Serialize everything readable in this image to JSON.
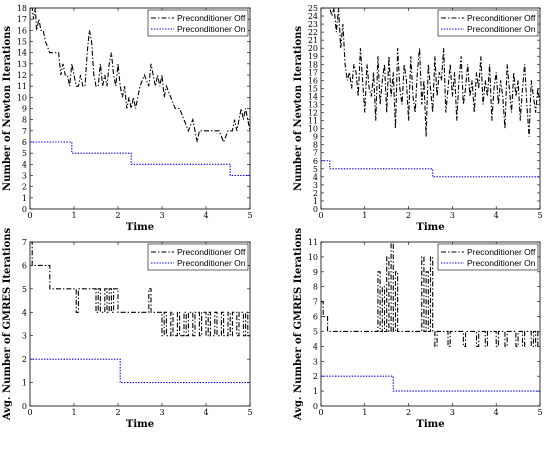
{
  "chart_data": [
    {
      "type": "line",
      "xlabel": "Time",
      "ylabel": "Number of Newton Iterations",
      "xlim": [
        0,
        5
      ],
      "ylim": [
        0,
        18
      ],
      "xticks": [
        "0",
        "1",
        "2",
        "3",
        "4",
        "5"
      ],
      "yticks": [
        "0",
        "1",
        "2",
        "3",
        "4",
        "5",
        "6",
        "7",
        "8",
        "9",
        "10",
        "11",
        "12",
        "13",
        "14",
        "15",
        "16",
        "17",
        "18"
      ],
      "grid": false,
      "legend_position": "top-right",
      "series": [
        {
          "name": "Preconditioner Off",
          "color": "#000000",
          "style": "dashdot",
          "x": [
            0,
            0.05,
            0.08,
            0.12,
            0.15,
            0.2,
            0.25,
            0.3,
            0.35,
            0.45,
            0.55,
            0.65,
            0.7,
            0.75,
            0.8,
            0.85,
            0.9,
            0.95,
            1.0,
            1.05,
            1.1,
            1.15,
            1.2,
            1.25,
            1.3,
            1.35,
            1.4,
            1.45,
            1.5,
            1.55,
            1.6,
            1.65,
            1.7,
            1.75,
            1.8,
            1.85,
            1.9,
            1.95,
            2.0,
            2.05,
            2.1,
            2.15,
            2.2,
            2.25,
            2.3,
            2.35,
            2.4,
            2.5,
            2.6,
            2.7,
            2.75,
            2.8,
            2.85,
            2.9,
            2.95,
            3.0,
            3.05,
            3.1,
            3.2,
            3.3,
            3.4,
            3.5,
            3.6,
            3.7,
            3.75,
            3.8,
            3.85,
            3.9,
            3.95,
            4.0,
            4.1,
            4.2,
            4.3,
            4.4,
            4.5,
            4.6,
            4.65,
            4.7,
            4.75,
            4.8,
            4.85,
            4.9,
            4.95,
            5.0
          ],
          "y": [
            18,
            18,
            17,
            18,
            16,
            17,
            16,
            16,
            15,
            14,
            14,
            14,
            12,
            13,
            12,
            12,
            11,
            13,
            12,
            11,
            11,
            12,
            11,
            11,
            14,
            16,
            15,
            12,
            11,
            11,
            13,
            11,
            12,
            11,
            13,
            14,
            12,
            11,
            13,
            11,
            10,
            11,
            9,
            10,
            9,
            10,
            9,
            11,
            12,
            11,
            13,
            12,
            11,
            12,
            11,
            12,
            10,
            11,
            10,
            9,
            9,
            8,
            7,
            8,
            7,
            6,
            7,
            7,
            7,
            7,
            7,
            7,
            7,
            6,
            7,
            7,
            8,
            7,
            8,
            9,
            8,
            9,
            8,
            7
          ]
        },
        {
          "name": "Preconditioner On",
          "color": "#0000ff",
          "style": "dotted",
          "x": [
            0,
            0.95,
            0.95,
            2.3,
            2.3,
            4.55,
            4.55,
            5.0
          ],
          "y": [
            6,
            6,
            5,
            5,
            4,
            4,
            3,
            3
          ]
        }
      ]
    },
    {
      "type": "line",
      "xlabel": "Time",
      "ylabel": "Number of Newton Iterations",
      "xlim": [
        0,
        5
      ],
      "ylim": [
        0,
        25
      ],
      "xticks": [
        "0",
        "1",
        "2",
        "3",
        "4",
        "5"
      ],
      "yticks": [
        "0",
        "1",
        "2",
        "3",
        "4",
        "5",
        "6",
        "7",
        "8",
        "9",
        "10",
        "11",
        "12",
        "13",
        "14",
        "15",
        "16",
        "17",
        "18",
        "19",
        "20",
        "21",
        "22",
        "23",
        "24",
        "25"
      ],
      "grid": false,
      "legend_position": "top-right",
      "series": [
        {
          "name": "Preconditioner Off",
          "color": "#000000",
          "style": "dashdot",
          "x": [
            0,
            0.1,
            0.2,
            0.25,
            0.3,
            0.35,
            0.4,
            0.45,
            0.5,
            0.55,
            0.6,
            0.65,
            0.7,
            0.75,
            0.8,
            0.85,
            0.9,
            0.95,
            1.0,
            1.05,
            1.1,
            1.15,
            1.2,
            1.25,
            1.3,
            1.35,
            1.4,
            1.45,
            1.5,
            1.55,
            1.6,
            1.65,
            1.7,
            1.75,
            1.8,
            1.85,
            1.9,
            1.95,
            2.0,
            2.05,
            2.1,
            2.15,
            2.2,
            2.25,
            2.3,
            2.35,
            2.4,
            2.45,
            2.5,
            2.55,
            2.6,
            2.65,
            2.7,
            2.75,
            2.8,
            2.85,
            2.9,
            2.95,
            3.0,
            3.05,
            3.1,
            3.15,
            3.2,
            3.25,
            3.3,
            3.35,
            3.4,
            3.45,
            3.5,
            3.55,
            3.6,
            3.65,
            3.7,
            3.75,
            3.8,
            3.85,
            3.9,
            3.95,
            4.0,
            4.05,
            4.1,
            4.15,
            4.2,
            4.25,
            4.3,
            4.35,
            4.4,
            4.45,
            4.5,
            4.55,
            4.6,
            4.65,
            4.7,
            4.75,
            4.8,
            4.85,
            4.9,
            4.95,
            5.0
          ],
          "y": [
            25,
            25,
            25,
            24,
            25,
            22,
            25,
            20,
            23,
            18,
            16,
            17,
            15,
            18,
            17,
            14,
            20,
            16,
            12,
            18,
            15,
            14,
            17,
            11,
            19,
            13,
            16,
            18,
            12,
            19,
            14,
            17,
            10,
            20,
            15,
            13,
            18,
            16,
            11,
            19,
            14,
            12,
            17,
            20,
            13,
            16,
            9,
            18,
            15,
            12,
            19,
            14,
            17,
            16,
            20,
            12,
            15,
            18,
            14,
            17,
            11,
            16,
            19,
            13,
            15,
            18,
            14,
            16,
            12,
            17,
            15,
            19,
            13,
            16,
            14,
            18,
            11,
            15,
            17,
            13,
            16,
            14,
            10,
            18,
            15,
            12,
            17,
            14,
            16,
            11,
            15,
            18,
            13,
            9,
            16,
            14,
            12,
            15,
            13
          ]
        },
        {
          "name": "Preconditioner On",
          "color": "#0000ff",
          "style": "dotted",
          "x": [
            0,
            0.1,
            0.1,
            0.2,
            0.2,
            2.55,
            2.55,
            5.0
          ],
          "y": [
            6,
            6,
            6,
            6,
            5,
            5,
            4,
            4
          ]
        }
      ]
    },
    {
      "type": "line",
      "xlabel": "Time",
      "ylabel": "Avg.   Number   of   GMRES   Iterations",
      "xlim": [
        0,
        5
      ],
      "ylim": [
        0,
        7
      ],
      "xticks": [
        "0",
        "1",
        "2",
        "3",
        "4",
        "5"
      ],
      "yticks": [
        "0",
        "1",
        "2",
        "3",
        "4",
        "5",
        "6",
        "7"
      ],
      "grid": false,
      "legend_position": "top-right",
      "series": [
        {
          "name": "Preconditioner Off",
          "color": "#000000",
          "style": "dashdot",
          "x": [
            0,
            0.05,
            0.05,
            0.45,
            0.45,
            1.05,
            1.05,
            1.1,
            1.1,
            1.15,
            1.15,
            1.5,
            1.5,
            1.55,
            1.55,
            1.6,
            1.6,
            1.7,
            1.7,
            1.75,
            1.75,
            1.8,
            1.8,
            1.85,
            1.85,
            1.9,
            1.9,
            2.0,
            2.0,
            2.1,
            2.1,
            2.7,
            2.7,
            2.75,
            2.75,
            3.0,
            3.0,
            3.05,
            3.05,
            3.1,
            3.1,
            3.2,
            3.2,
            3.25,
            3.25,
            3.35,
            3.35,
            3.4,
            3.4,
            3.5,
            3.5,
            3.55,
            3.55,
            3.6,
            3.6,
            3.7,
            3.7,
            3.75,
            3.75,
            3.85,
            3.85,
            3.9,
            3.9,
            4.0,
            4.0,
            4.05,
            4.05,
            4.1,
            4.1,
            4.2,
            4.2,
            4.25,
            4.25,
            4.35,
            4.35,
            4.4,
            4.4,
            4.5,
            4.5,
            4.55,
            4.55,
            4.6,
            4.6,
            4.7,
            4.7,
            4.75,
            4.75,
            4.85,
            4.85,
            4.9,
            4.9,
            4.95,
            4.95,
            5.0
          ],
          "y": [
            7,
            7,
            6,
            6,
            5,
            5,
            4,
            4,
            5,
            5,
            5,
            5,
            4,
            4,
            5,
            5,
            4,
            4,
            5,
            5,
            4,
            4,
            5,
            5,
            4,
            4,
            5,
            5,
            4,
            4,
            4,
            4,
            5,
            5,
            4,
            4,
            3,
            3,
            4,
            4,
            3,
            3,
            4,
            4,
            3,
            3,
            4,
            4,
            3,
            3,
            4,
            4,
            3,
            3,
            4,
            4,
            3,
            3,
            4,
            4,
            3,
            3,
            4,
            4,
            3,
            3,
            4,
            4,
            3,
            3,
            4,
            4,
            3,
            3,
            4,
            4,
            3,
            3,
            4,
            4,
            3,
            3,
            4,
            4,
            3,
            3,
            4,
            4,
            3,
            3,
            4,
            4,
            3,
            3
          ]
        },
        {
          "name": "Preconditioner On",
          "color": "#0000ff",
          "style": "dotted",
          "x": [
            0,
            2.05,
            2.05,
            5.0
          ],
          "y": [
            2,
            2,
            1,
            1
          ]
        }
      ]
    },
    {
      "type": "line",
      "xlabel": "Time",
      "ylabel": "Avg.   Number   of   GMRES   Iterations",
      "xlim": [
        0,
        5
      ],
      "ylim": [
        0,
        11
      ],
      "xticks": [
        "0",
        "1",
        "2",
        "3",
        "4",
        "5"
      ],
      "yticks": [
        "0",
        "1",
        "2",
        "3",
        "4",
        "5",
        "6",
        "7",
        "8",
        "9",
        "10",
        "11"
      ],
      "grid": false,
      "legend_position": "top-right",
      "series": [
        {
          "name": "Preconditioner Off",
          "color": "#000000",
          "style": "dashdot",
          "x": [
            0,
            0.05,
            0.05,
            0.15,
            0.15,
            0.3,
            0.3,
            1.3,
            1.3,
            1.35,
            1.35,
            1.4,
            1.4,
            1.45,
            1.45,
            1.5,
            1.5,
            1.55,
            1.55,
            1.6,
            1.6,
            1.65,
            1.65,
            1.7,
            1.7,
            1.75,
            1.75,
            1.8,
            1.8,
            2.3,
            2.3,
            2.35,
            2.35,
            2.4,
            2.4,
            2.45,
            2.45,
            2.5,
            2.5,
            2.55,
            2.55,
            2.6,
            2.6,
            2.65,
            2.65,
            2.9,
            2.9,
            2.95,
            2.95,
            3.25,
            3.25,
            3.3,
            3.3,
            3.55,
            3.55,
            3.6,
            3.6,
            3.75,
            3.75,
            3.8,
            3.8,
            4.0,
            4.0,
            4.05,
            4.05,
            4.2,
            4.2,
            4.25,
            4.25,
            4.45,
            4.45,
            4.5,
            4.5,
            4.6,
            4.6,
            4.65,
            4.65,
            4.8,
            4.8,
            4.85,
            4.85,
            4.9,
            4.9,
            4.95,
            4.95,
            5.0
          ],
          "y": [
            7,
            7,
            6,
            6,
            5,
            5,
            5,
            5,
            9,
            9,
            5,
            5,
            8,
            8,
            5,
            5,
            10,
            10,
            5,
            5,
            11,
            11,
            5,
            5,
            9,
            9,
            5,
            5,
            5,
            5,
            10,
            10,
            5,
            5,
            9,
            9,
            5,
            5,
            10,
            10,
            5,
            5,
            4,
            4,
            5,
            5,
            4,
            4,
            5,
            5,
            4,
            4,
            5,
            5,
            4,
            4,
            5,
            5,
            4,
            4,
            5,
            5,
            4,
            4,
            5,
            5,
            4,
            4,
            5,
            5,
            4,
            4,
            5,
            5,
            4,
            4,
            5,
            5,
            4,
            4,
            5,
            5,
            4,
            4,
            5,
            5
          ]
        },
        {
          "name": "Preconditioner On",
          "color": "#0000ff",
          "style": "dotted",
          "x": [
            0,
            1.65,
            1.65,
            5.0
          ],
          "y": [
            2,
            2,
            1,
            1
          ]
        }
      ]
    }
  ]
}
